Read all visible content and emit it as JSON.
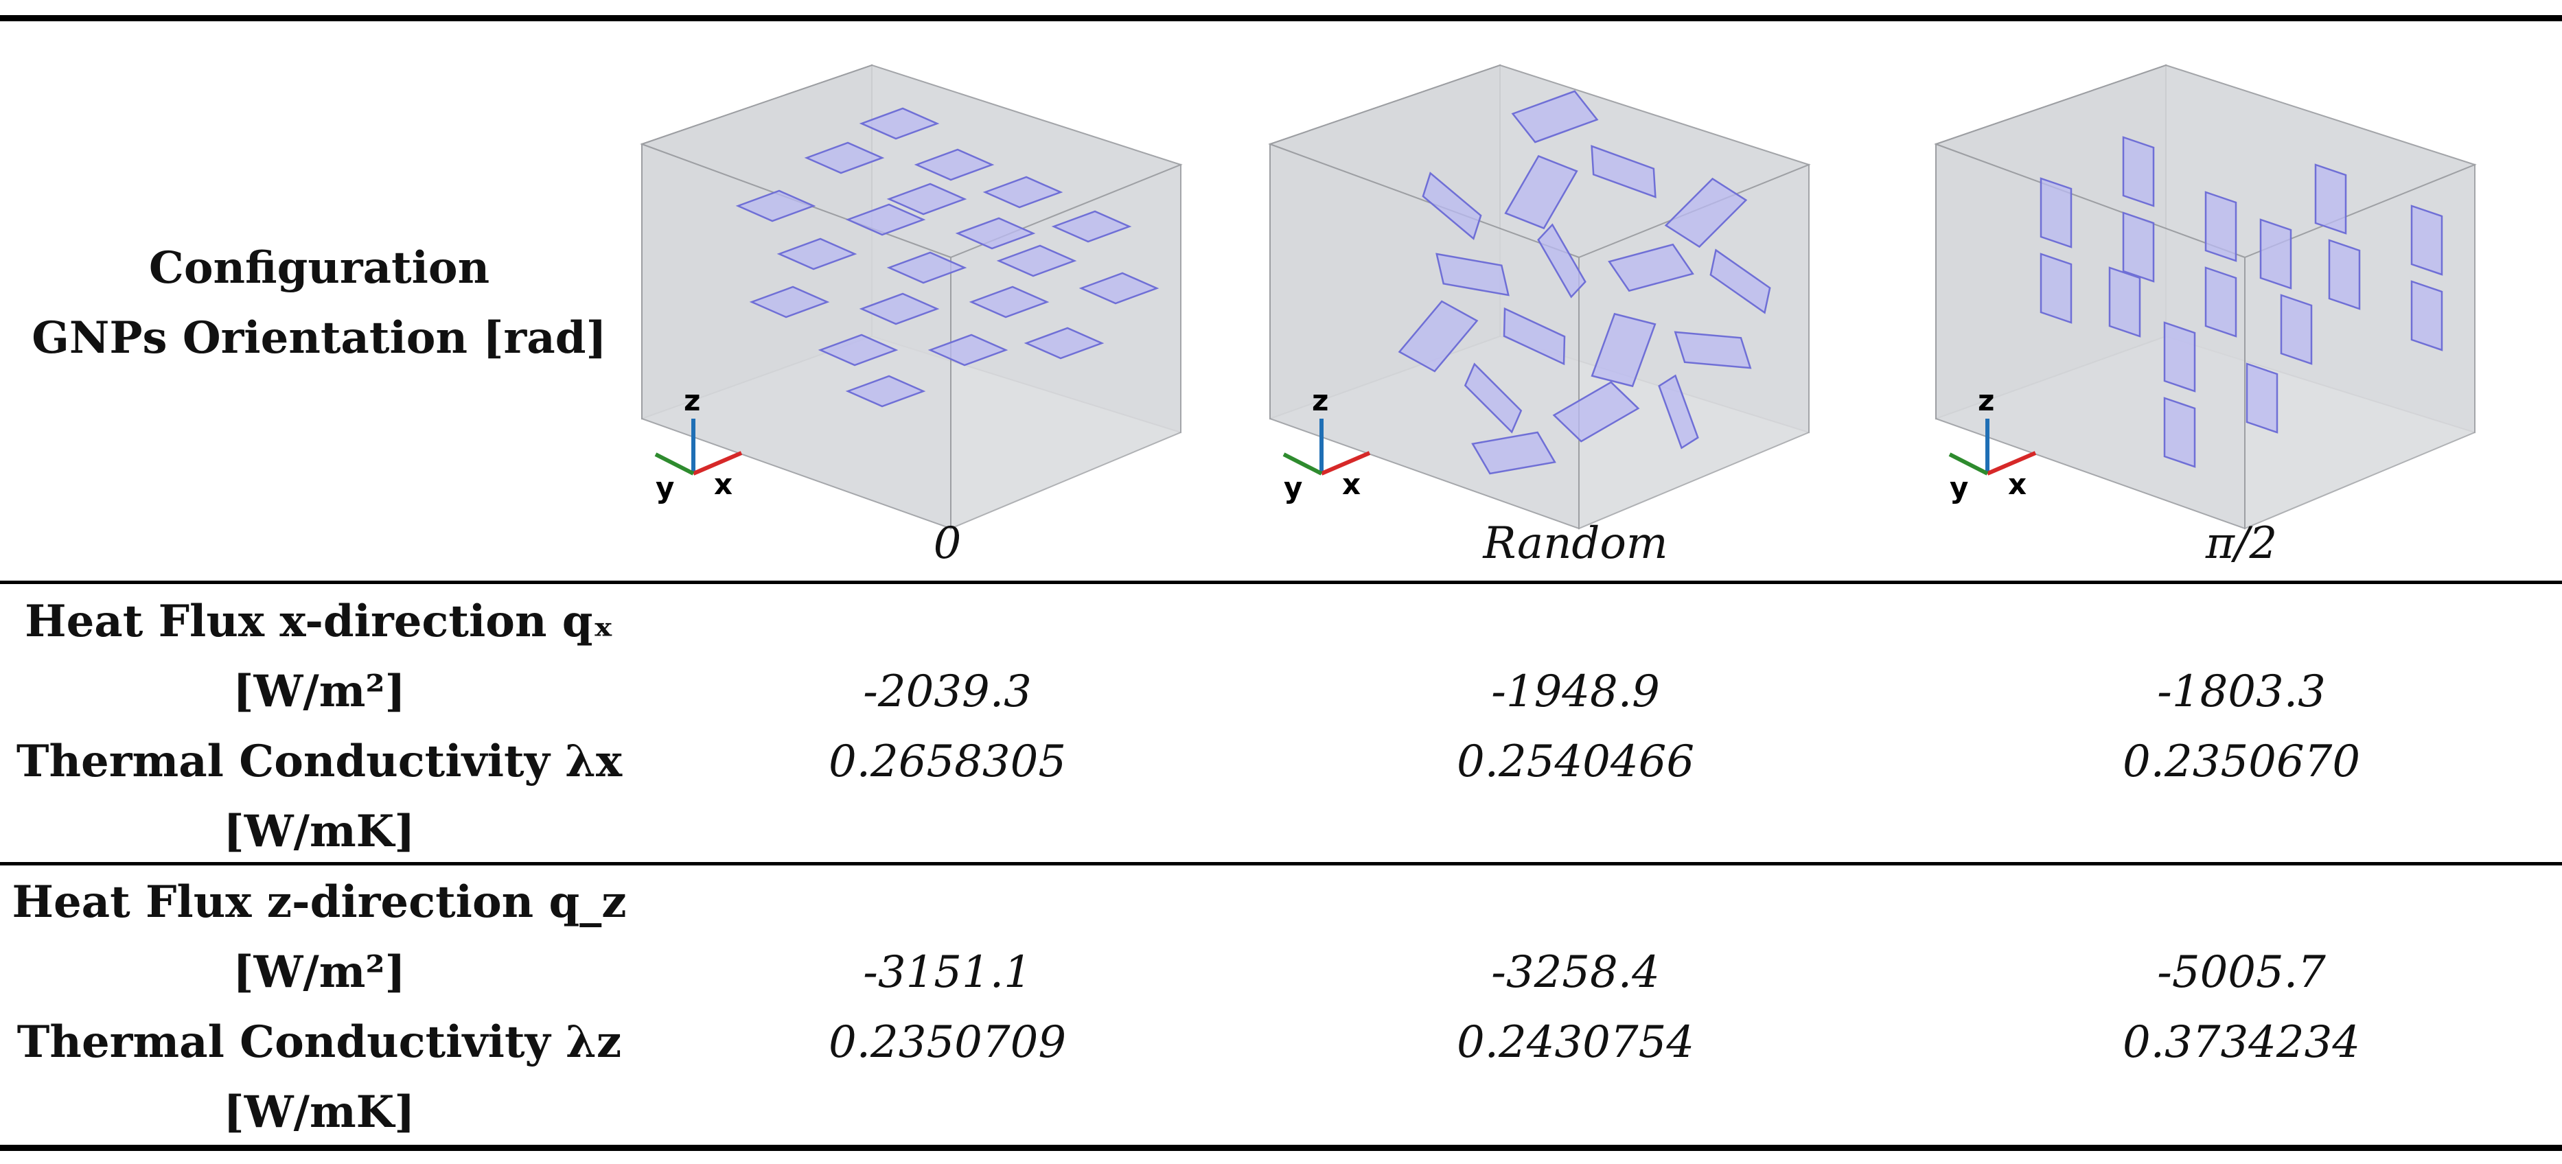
{
  "header": {
    "title_line1": "Configuration",
    "title_line2": "GNPs Orientation [rad]",
    "orientations": [
      "0",
      "Random",
      "π/2"
    ]
  },
  "figures": [
    {
      "orientation": "0",
      "axes": {
        "x": "x",
        "y": "y",
        "z": "z"
      }
    },
    {
      "orientation": "Random",
      "axes": {
        "x": "x",
        "y": "y",
        "z": "z"
      }
    },
    {
      "orientation": "π/2",
      "axes": {
        "x": "x",
        "y": "y",
        "z": "z"
      }
    }
  ],
  "rows": [
    {
      "label_lines": [
        "Heat Flux x-direction qₓ",
        "[W/m²]",
        "Thermal Conductivity λx",
        "[W/mK]"
      ],
      "flux": [
        "-2039.3",
        "-1948.9",
        "-1803.3"
      ],
      "conductivity": [
        "0.2658305",
        "0.2540466",
        "0.2350670"
      ]
    },
    {
      "label_lines": [
        "Heat Flux z-direction q_z",
        "[W/m²]",
        "Thermal Conductivity λz",
        "[W/mK]"
      ],
      "flux": [
        "-3151.1",
        "-3258.4",
        "-5005.7"
      ],
      "conductivity": [
        "0.2350709",
        "0.2430754",
        "0.3734234"
      ]
    }
  ],
  "colors": {
    "box_fill": "#d7d9dc",
    "box_edge": "#9c9ea2",
    "platelet_fill": "#b9b9f2",
    "platelet_edge": "#6f6fd6",
    "axis_x": "#d62828",
    "axis_y": "#2e8b2e",
    "axis_z": "#1f6fb5"
  }
}
